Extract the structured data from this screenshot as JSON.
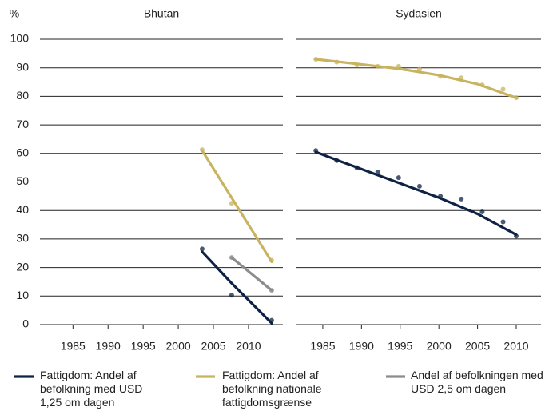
{
  "chart_data": [
    {
      "type": "line",
      "title": "Bhutan",
      "ylabel": "%",
      "xlim": [
        1980.3,
        2014.9
      ],
      "xticks": [
        1985,
        1990,
        1995,
        2000,
        2005,
        2010
      ],
      "ylim": [
        0,
        100
      ],
      "yticks": [
        0,
        10,
        20,
        30,
        40,
        50,
        60,
        70,
        80,
        90,
        100
      ],
      "grid": true,
      "series": [
        {
          "name": "Fattigdom: Andel af befolkning med USD 1,25 om dagen",
          "color": "#0e2344",
          "x": [
            2003.4,
            2007.6,
            2013.3
          ],
          "values": [
            26.5,
            10.3,
            1.5
          ],
          "trend_x": [
            2003.4,
            2007.6,
            2013.3
          ],
          "trend": [
            25.5,
            14.5,
            0.5
          ]
        },
        {
          "name": "Fattigdom: Andel af befolkning nationale fattigdomsgrænse",
          "color": "#c8b35e",
          "x": [
            2003.4,
            2007.6,
            2013.3
          ],
          "values": [
            61.3,
            42.5,
            22.5
          ],
          "trend_x": [
            2003.4,
            2013.3
          ],
          "trend": [
            61,
            22
          ]
        },
        {
          "name": "Andel af befolkningen med USD 2,5 om dagen",
          "color": "#8c8c8c",
          "x": [
            2007.6,
            2013.3
          ],
          "values": [
            23.5,
            12
          ],
          "trend_x": [
            2007.6,
            2013.3
          ],
          "trend": [
            23.5,
            12
          ]
        }
      ]
    },
    {
      "type": "line",
      "title": "Sydasien",
      "xlim": [
        1981.6,
        2013.2
      ],
      "xticks": [
        1985,
        1990,
        1995,
        2000,
        2005,
        2010
      ],
      "ylim": [
        0,
        100
      ],
      "yticks": [
        0,
        10,
        20,
        30,
        40,
        50,
        60,
        70,
        80,
        90,
        100
      ],
      "grid": true,
      "series": [
        {
          "color": "#0e2344",
          "x": [
            1984.1,
            1986.8,
            1989.4,
            1992.1,
            1994.8,
            1997.5,
            2000.2,
            2002.9,
            2005.6,
            2008.3,
            2010
          ],
          "values": [
            61,
            57.5,
            55,
            53.5,
            51.5,
            48.5,
            45,
            44,
            39.5,
            36,
            31
          ],
          "trend_x": [
            1984.1,
            1987,
            1990,
            1995,
            2000,
            2005,
            2010
          ],
          "trend": [
            60.5,
            57.5,
            54.5,
            49.5,
            44.5,
            38.8,
            31.5
          ]
        },
        {
          "color": "#c8b35e",
          "x": [
            1984.1,
            1986.8,
            1989.4,
            1992.1,
            1994.8,
            1997.5,
            2000.2,
            2002.9,
            2005.6,
            2008.3,
            2010
          ],
          "values": [
            93,
            92,
            91,
            90.5,
            90.5,
            89.5,
            87,
            86.5,
            84,
            82.5,
            79.5
          ],
          "trend_x": [
            1984.1,
            1990,
            1995,
            2000,
            2005,
            2010
          ],
          "trend": [
            93,
            91.2,
            89.6,
            87.4,
            84.3,
            79.5
          ]
        }
      ]
    }
  ]
}
